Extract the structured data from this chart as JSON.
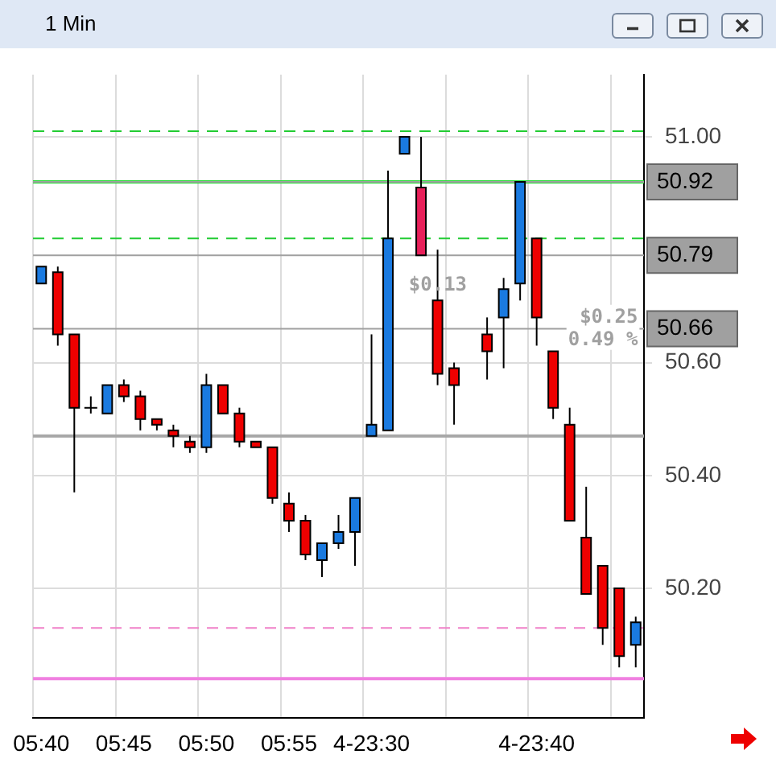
{
  "chart_data": {
    "type": "candlestick",
    "title": "1 Min",
    "categories": [
      "05:40",
      null,
      null,
      null,
      null,
      "05:45",
      null,
      null,
      null,
      null,
      "05:50",
      null,
      null,
      null,
      null,
      "05:55",
      null,
      null,
      null,
      null,
      "4-23:30",
      null,
      null,
      null,
      null,
      null,
      null,
      null,
      null,
      null,
      "4-23:40",
      null,
      null,
      null,
      null,
      null,
      null
    ],
    "ohlc": [
      [
        50.74,
        50.77,
        50.74,
        50.77
      ],
      [
        50.76,
        50.77,
        50.63,
        50.65
      ],
      [
        50.65,
        50.65,
        50.37,
        50.52
      ],
      [
        50.52,
        50.54,
        50.51,
        50.52
      ],
      [
        50.51,
        50.56,
        50.51,
        50.56
      ],
      [
        50.56,
        50.57,
        50.53,
        50.54
      ],
      [
        50.54,
        50.55,
        50.48,
        50.5
      ],
      [
        50.5,
        50.5,
        50.48,
        50.49
      ],
      [
        50.48,
        50.49,
        50.45,
        50.47
      ],
      [
        50.46,
        50.47,
        50.44,
        50.45
      ],
      [
        50.45,
        50.58,
        50.44,
        50.56
      ],
      [
        50.56,
        50.56,
        50.51,
        50.51
      ],
      [
        50.51,
        50.52,
        50.45,
        50.46
      ],
      [
        50.46,
        50.46,
        50.45,
        50.45
      ],
      [
        50.45,
        50.45,
        50.35,
        50.36
      ],
      [
        50.35,
        50.37,
        50.3,
        50.32
      ],
      [
        50.32,
        50.33,
        50.25,
        50.26
      ],
      [
        50.25,
        50.28,
        50.22,
        50.28
      ],
      [
        50.28,
        50.33,
        50.27,
        50.3
      ],
      [
        50.3,
        50.36,
        50.24,
        50.36
      ],
      [
        50.47,
        50.65,
        50.47,
        50.49
      ],
      [
        50.48,
        50.94,
        50.48,
        50.82
      ],
      [
        50.97,
        51.0,
        50.97,
        51.0
      ],
      [
        50.91,
        51.0,
        50.79,
        50.79
      ],
      [
        50.71,
        50.8,
        50.56,
        50.58
      ],
      [
        50.59,
        50.6,
        50.49,
        50.56
      ],
      null,
      [
        50.65,
        50.68,
        50.57,
        50.62
      ],
      [
        50.68,
        50.75,
        50.59,
        50.73
      ],
      [
        50.74,
        50.92,
        50.71,
        50.92
      ],
      [
        50.82,
        50.82,
        50.63,
        50.68
      ],
      [
        50.62,
        50.62,
        50.5,
        50.52
      ],
      [
        50.49,
        50.52,
        50.32,
        50.32
      ],
      [
        50.29,
        50.38,
        50.19,
        50.19
      ],
      [
        50.24,
        50.24,
        50.1,
        50.13
      ],
      [
        50.2,
        50.2,
        50.06,
        50.08
      ],
      [
        50.1,
        50.15,
        50.06,
        50.14
      ]
    ],
    "colors": [
      "#1a7ae0",
      "#ee0000",
      "#ee0000",
      "#000000",
      "#1a7ae0",
      "#ee0000",
      "#ee0000",
      "#ee0000",
      "#ee0000",
      "#ee0000",
      "#1a7ae0",
      "#ee0000",
      "#ee0000",
      "#ee0000",
      "#ee0000",
      "#ee0000",
      "#ee0000",
      "#1a7ae0",
      "#1a7ae0",
      "#1a7ae0",
      "#1a7ae0",
      "#1a7ae0",
      "#1a7ae0",
      "#e8205a",
      "#ee0000",
      "#ee0000",
      null,
      "#ee0000",
      "#1a7ae0",
      "#1a7ae0",
      "#ee0000",
      "#ee0000",
      "#ee0000",
      "#ee0000",
      "#ee0000",
      "#ee0000",
      "#1a7ae0"
    ],
    "ylim": [
      49.97,
      51.11
    ],
    "yticks": [
      {
        "value": 50.2,
        "label": "50.20"
      },
      {
        "value": 50.4,
        "label": "50.40"
      },
      {
        "value": 50.6,
        "label": "50.60"
      },
      {
        "value": 51,
        "label": "51.00"
      }
    ],
    "grid": true,
    "ref_lines": [
      {
        "axis": "y",
        "value": 51.01,
        "color": "#22cc33",
        "line_style": "dashed"
      },
      {
        "axis": "y",
        "value": 50.92,
        "color": "#22dd33",
        "line_style": "solid"
      },
      {
        "axis": "y",
        "value": 50.82,
        "color": "#22cc33",
        "line_style": "dashed"
      },
      {
        "axis": "y",
        "value": 50.47,
        "color": "#a8a8a8",
        "line_style": "solid"
      },
      {
        "axis": "y",
        "value": 50.13,
        "color": "#f080c8",
        "line_style": "dashed"
      },
      {
        "axis": "y",
        "value": 50.04,
        "color": "#f080e0",
        "line_style": "solid"
      },
      {
        "axis": "y",
        "value": 50.92,
        "label": "50.92",
        "color": "#a0a0a0",
        "line_style": "solid"
      },
      {
        "axis": "y",
        "value": 50.79,
        "label": "50.79",
        "color": "#a0a0a0",
        "line_style": "solid"
      },
      {
        "axis": "y",
        "value": 50.66,
        "label": "50.66",
        "color": "#a0a0a0",
        "line_style": "solid"
      }
    ],
    "annotations": [
      "$0.13",
      "$0.25",
      "0.49 %"
    ]
  }
}
